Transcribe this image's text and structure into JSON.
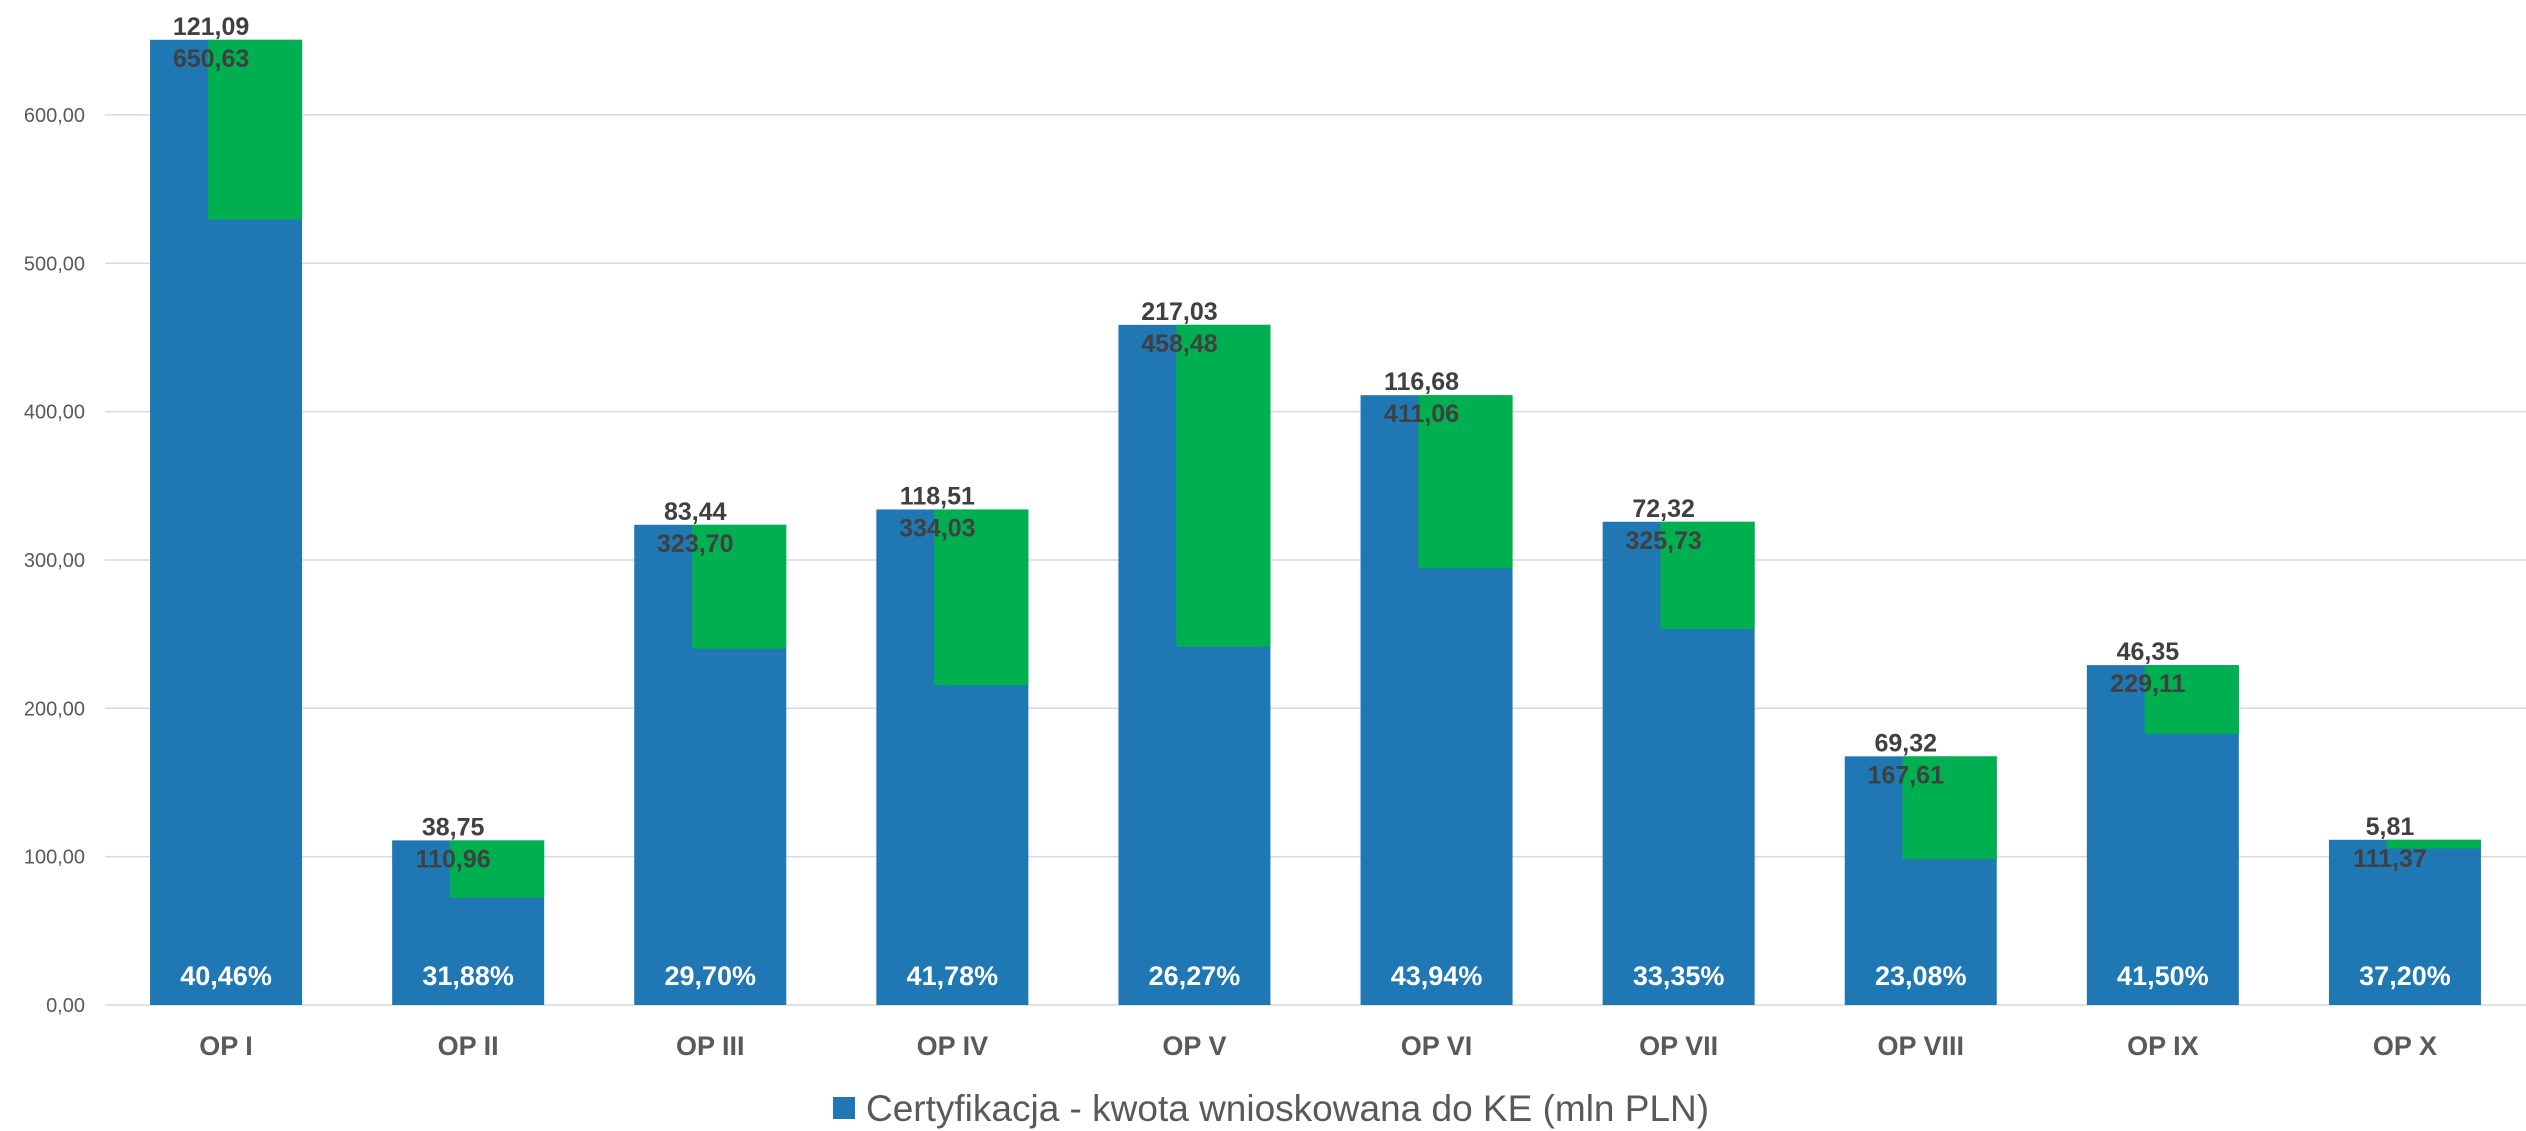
{
  "chart_data": {
    "type": "bar",
    "categories": [
      "OP I",
      "OP II",
      "OP III",
      "OP IV",
      "OP V",
      "OP VI",
      "OP VII",
      "OP VIII",
      "OP IX",
      "OP X"
    ],
    "totals": [
      650.63,
      110.96,
      323.7,
      334.03,
      458.48,
      411.06,
      325.73,
      167.61,
      229.11,
      111.37
    ],
    "totals_labels": [
      "650,63",
      "110,96",
      "323,70",
      "334,03",
      "458,48",
      "411,06",
      "325,73",
      "167,61",
      "229,11",
      "111,37"
    ],
    "top_values": [
      121.09,
      38.75,
      83.44,
      118.51,
      217.03,
      116.68,
      72.32,
      69.32,
      46.35,
      5.81
    ],
    "top_labels": [
      "121,09",
      "38,75",
      "83,44",
      "118,51",
      "217,03",
      "116,68",
      "72,32",
      "69,32",
      "46,35",
      "5,81"
    ],
    "percent_labels": [
      "40,46%",
      "31,88%",
      "29,70%",
      "41,78%",
      "26,27%",
      "43,94%",
      "33,35%",
      "23,08%",
      "41,50%",
      "37,20%"
    ],
    "series": [
      {
        "name": "Certyfikacja - kwota wnioskowana do KE (mln PLN)",
        "color": "#1F77B4"
      },
      {
        "color": "#00B050"
      }
    ],
    "ylim": [
      0,
      650
    ],
    "yticks": [
      0,
      100,
      200,
      300,
      400,
      500,
      600
    ],
    "ytick_labels": [
      "0,00",
      "100,00",
      "200,00",
      "300,00",
      "400,00",
      "500,00",
      "600,00"
    ],
    "grid": true,
    "legend": "bottom-center"
  },
  "legend": {
    "label": "Certyfikacja - kwota wnioskowana do KE (mln PLN)"
  }
}
